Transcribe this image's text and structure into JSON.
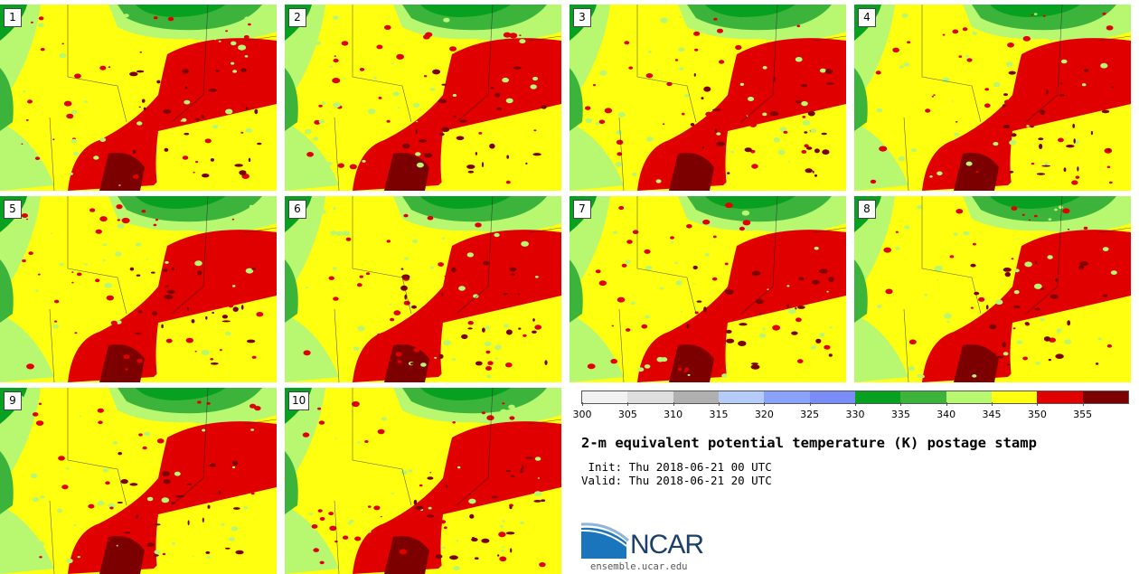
{
  "panels": [
    {
      "label": "1"
    },
    {
      "label": "2"
    },
    {
      "label": "3"
    },
    {
      "label": "4"
    },
    {
      "label": "5"
    },
    {
      "label": "6"
    },
    {
      "label": "7"
    },
    {
      "label": "8"
    },
    {
      "label": "9"
    },
    {
      "label": "10"
    }
  ],
  "colorbar": {
    "colors": [
      "#f2f2f2",
      "#dedede",
      "#b0b0b0",
      "#b6ccf8",
      "#8aa2fa",
      "#7a8cf8",
      "#08a020",
      "#3cb43c",
      "#b8f870",
      "#ffff10",
      "#e00000",
      "#7c0000"
    ],
    "ticks": [
      "300",
      "305",
      "310",
      "315",
      "320",
      "325",
      "330",
      "335",
      "340",
      "345",
      "350",
      "355"
    ]
  },
  "title": "2-m equivalent potential temperature (K) postage stamp",
  "init": " Init: Thu 2018-06-21 00 UTC",
  "valid": "Valid: Thu 2018-06-21 20 UTC",
  "logo": {
    "name": "NCAR",
    "url": "ensemble.ucar.edu"
  },
  "map_colors": {
    "yellow": "#ffff10",
    "lightgreen": "#b8f870",
    "green": "#3cb43c",
    "darkgreen": "#08a020",
    "red": "#e00000",
    "darkred": "#7c0000"
  }
}
